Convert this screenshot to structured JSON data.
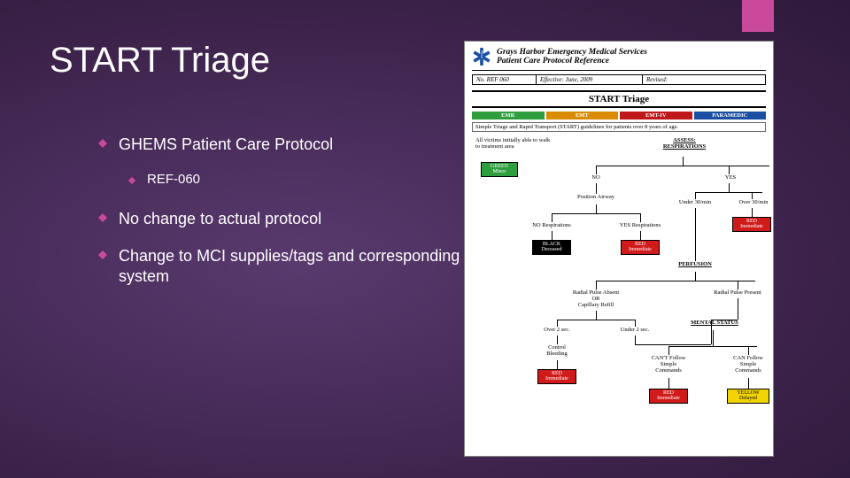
{
  "slide": {
    "title": "START Triage",
    "accent_color": "#c94a9a",
    "background_gradient": [
      "#5a3a6e",
      "#4a2d5c",
      "#3a2148",
      "#2e1a3a"
    ],
    "text_color": "#ffffff"
  },
  "bullets": [
    {
      "text": "GHEMS Patient Care Protocol",
      "level": 0
    },
    {
      "text": "REF-060",
      "level": 1
    },
    {
      "text": "No change to actual protocol",
      "level": 0
    },
    {
      "text": "Change to MCI supplies/tags and corresponding system",
      "level": 0
    }
  ],
  "document": {
    "header_line1": "Grays Harbor Emergency Medical Services",
    "header_line2": "Patient Care Protocol Reference",
    "meta": {
      "no": "No. REF 060",
      "effective": "Effective: June, 2009",
      "revised": "Revised:"
    },
    "section_title": "START Triage",
    "levels": [
      {
        "label": "EMR",
        "color": "#2e9e3f"
      },
      {
        "label": "EMT",
        "color": "#d98c00"
      },
      {
        "label": "EMT-IV",
        "color": "#c01818"
      },
      {
        "label": "PARAMEDIC",
        "color": "#1a4fa3"
      }
    ],
    "note": "Simple Triage and Rapid Transport (START) guidelines for patients over 8 years of age.",
    "flow": {
      "top_left": "All victims initially able to walk to treatment area",
      "assess_resp": "ASSESS:\nRESPIRATIONS",
      "no": "NO",
      "yes": "YES",
      "position_airway": "Position Airway",
      "under_30": "Under 30/min",
      "over_30": "Over 30/min",
      "no_resp": "NO Respirations",
      "yes_resp": "YES Respirations",
      "perfusion": "PERFUSION",
      "radial_absent": "Radial Pulse Absent\nOR\nCapillary Refill",
      "radial_present": "Radial Pulse Present",
      "over_2": "Over 2 sec.",
      "under_2": "Under 2 sec.",
      "control_bleeding": "Control\nBleeding",
      "mental_status": "MENTAL STATUS",
      "cant_follow": "CAN'T Follow\nSimple\nCommands",
      "can_follow": "CAN Follow\nSimple\nCommands",
      "boxes": {
        "green": {
          "label": "GREEN\nMinor",
          "bg": "#2e9e3f",
          "fg": "#ffffff"
        },
        "black": {
          "label": "BLACK\nDeceased",
          "bg": "#000000",
          "fg": "#ffffff"
        },
        "red1": {
          "label": "RED\nImmediate",
          "bg": "#d11a1a",
          "fg": "#ffffff"
        },
        "red2": {
          "label": "RED\nImmediate",
          "bg": "#d11a1a",
          "fg": "#ffffff"
        },
        "red3": {
          "label": "RED\nImmediate",
          "bg": "#d11a1a",
          "fg": "#ffffff"
        },
        "red4": {
          "label": "RED\nImmediate",
          "bg": "#d11a1a",
          "fg": "#ffffff"
        },
        "yellow": {
          "label": "YELLOW\nDelayed",
          "bg": "#f2d400",
          "fg": "#000000"
        }
      }
    }
  }
}
